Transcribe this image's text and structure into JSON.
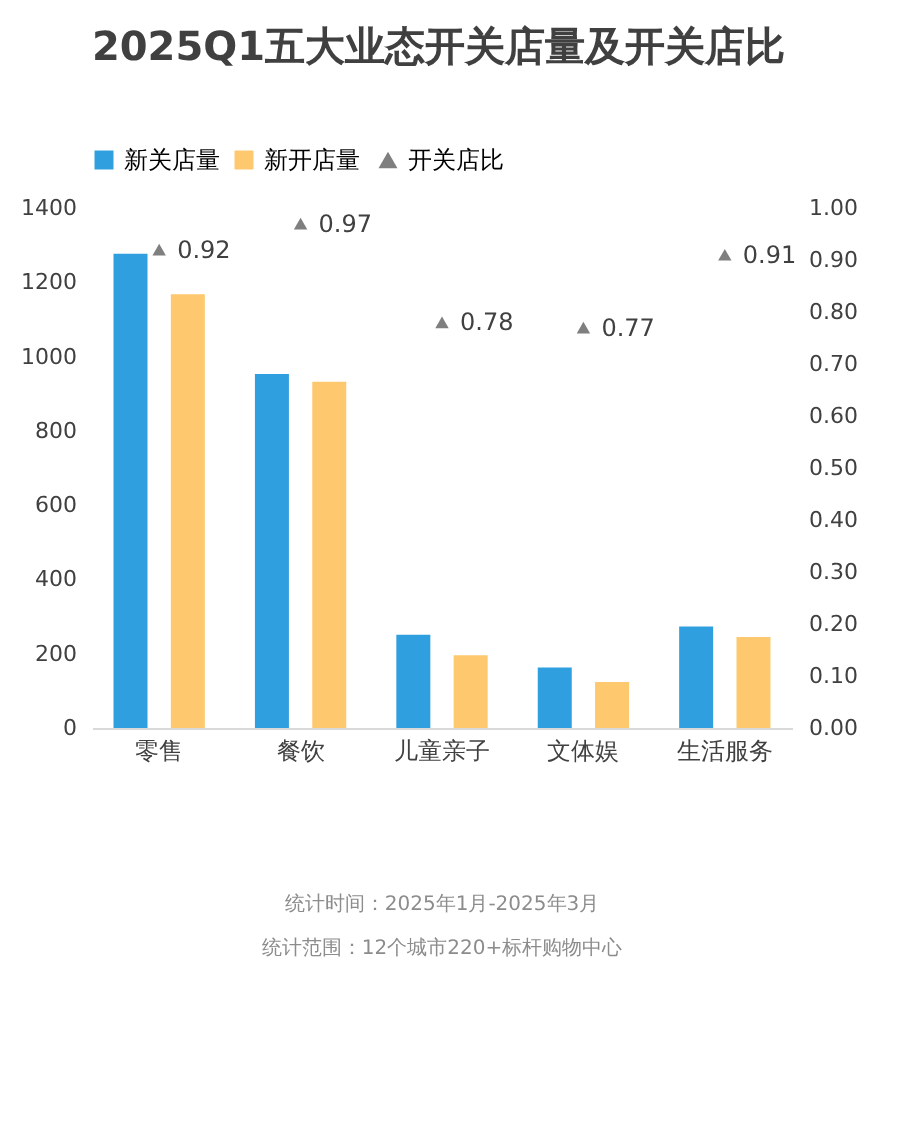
{
  "chart_data": {
    "type": "bar",
    "title": "2025Q1五大业态开关店量及开关店比",
    "categories": [
      "零售",
      "餐饮",
      "儿童亲子",
      "文体娱",
      "生活服务"
    ],
    "series": [
      {
        "name": "新关店量",
        "color": "#2f9fe0",
        "values": [
          1277,
          953,
          251,
          163,
          273
        ]
      },
      {
        "name": "新开店量",
        "color": "#fdc86e",
        "values": [
          1168,
          932,
          196,
          124,
          245
        ]
      },
      {
        "name": "开关店比",
        "color": "#7f7f7f",
        "type": "scatter",
        "axis": "y2",
        "marker": "triangle",
        "data_labels": true,
        "values": [
          0.92,
          0.97,
          0.78,
          0.77,
          0.91
        ]
      }
    ],
    "ylim": [
      0,
      1400
    ],
    "yticks": [
      0,
      200,
      400,
      600,
      800,
      1000,
      1200,
      1400
    ],
    "y2lim": [
      0,
      1.0
    ],
    "y2ticks": [
      {
        "value": 0,
        "label": "0.00"
      },
      {
        "value": 0.1,
        "label": "0.10"
      },
      {
        "value": 0.2,
        "label": "0.20"
      },
      {
        "value": 0.3,
        "label": "0.30"
      },
      {
        "value": 0.4,
        "label": "0.40"
      },
      {
        "value": 0.5,
        "label": "0.50"
      },
      {
        "value": 0.6,
        "label": "0.60"
      },
      {
        "value": 0.7,
        "label": "0.70"
      },
      {
        "value": 0.8,
        "label": "0.80"
      },
      {
        "value": 0.9,
        "label": "0.90"
      },
      {
        "value": 1.0,
        "label": "1.00"
      }
    ],
    "grid": false,
    "legend": "top",
    "annotations": [
      "统计时间：2025年1月-2025年3月",
      "统计范围：12个城市220+标杆购物中心"
    ]
  }
}
